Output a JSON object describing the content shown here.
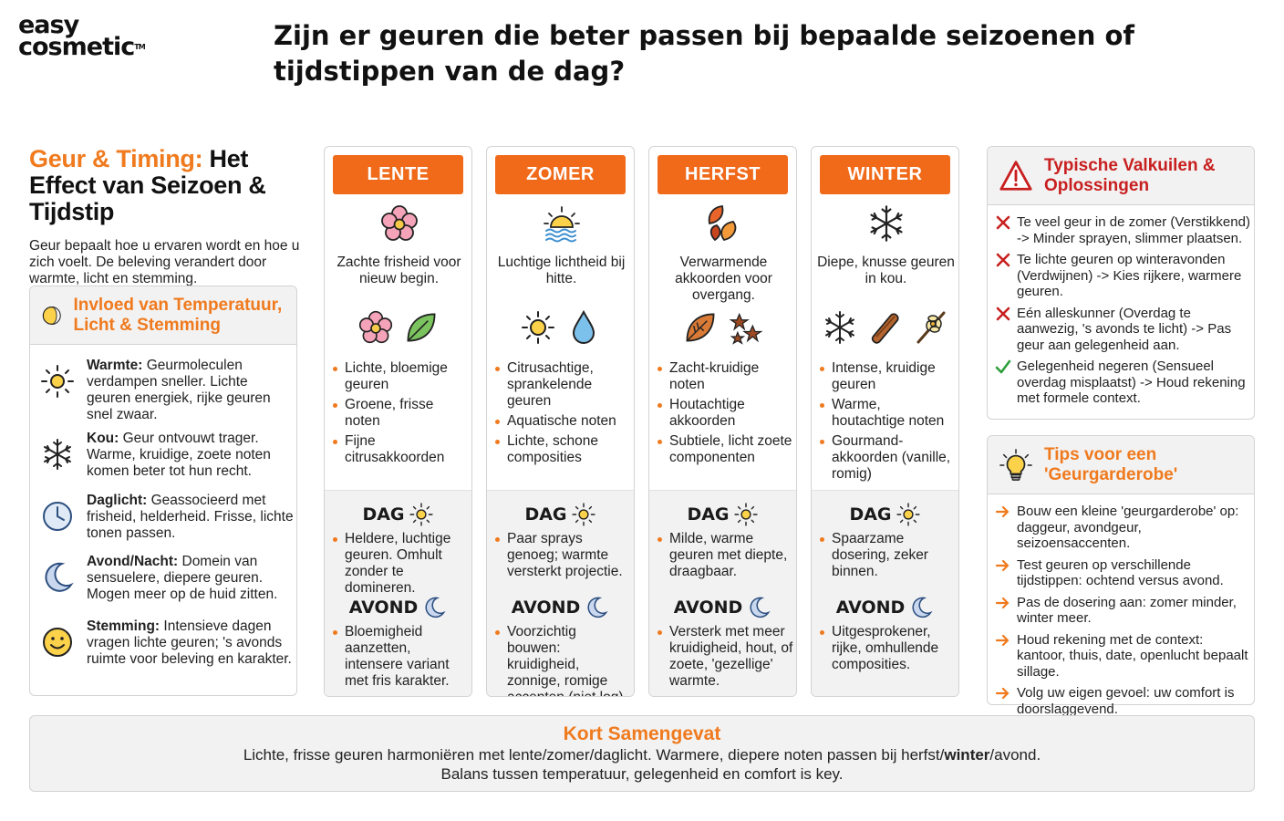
{
  "logo": {
    "line1": "easy",
    "line2": "cosmetic",
    "tm": "TM"
  },
  "title": "Zijn er geuren die beter passen bij bepaalde seizoenen of tijdstippen van de dag?",
  "intro": {
    "heading_accent": "Geur & Timing:",
    "heading_rest": " Het Effect van Seizoen & Tijdstip",
    "text": "Geur bepaalt hoe u ervaren wordt en hoe u zich voelt. De beleving verandert door warmte, licht en stemming."
  },
  "influence": {
    "title": "Invloed van Temperatuur, Licht & Stemming",
    "items": [
      {
        "term": "Warmte:",
        "text": " Geurmoleculen verdampen sneller. Lichte geuren energiek, rijke geuren snel zwaar.",
        "icon": "sun-icon"
      },
      {
        "term": "Kou:",
        "text": " Geur ontvouwt trager. Warme, kruidige, zoete noten komen beter tot hun recht.",
        "icon": "snowflake-icon"
      },
      {
        "term": "Daglicht:",
        "text": " Geassocieerd met frisheid, helderheid. Frisse, lichte tonen passen.",
        "icon": "clock-icon"
      },
      {
        "term": "Avond/Nacht:",
        "text": " Domein van sensuelere, diepere geuren. Mogen meer op de huid zitten.",
        "icon": "moon-icon"
      },
      {
        "term": "Stemming:",
        "text": " Intensieve dagen vragen lichte geuren; 's avonds ruimte voor beleving en karakter.",
        "icon": "smiley-icon"
      }
    ]
  },
  "phase_labels": {
    "day": "DAG",
    "evening": "AVOND"
  },
  "seasons": [
    {
      "label": "LENTE",
      "desc": "Zachte frisheid voor nieuw begin.",
      "notes": [
        "Lichte, bloemige geuren",
        "Groene, frisse noten",
        "Fijne citrusakkoorden"
      ],
      "day": [
        "Heldere, luchtige geuren. Omhult zonder te domineren."
      ],
      "evening": [
        "Bloemigheid aanzetten, intensere variant met fris karakter."
      ]
    },
    {
      "label": "ZOMER",
      "desc": "Luchtige lichtheid bij hitte.",
      "notes": [
        "Citrusachtige, sprankelende geuren",
        "Aquatische noten",
        "Lichte, schone composities"
      ],
      "day": [
        "Paar sprays genoeg; warmte versterkt projectie."
      ],
      "evening": [
        "Voorzichtig bouwen: kruidigheid, zonnige, romige accenten (niet log)."
      ]
    },
    {
      "label": "HERFST",
      "desc": "Verwarmende akkoorden voor overgang.",
      "notes": [
        "Zacht-kruidige noten",
        "Houtachtige akkoorden",
        "Subtiele, licht zoete componenten"
      ],
      "day": [
        "Milde, warme geuren met diepte, draagbaar."
      ],
      "evening": [
        "Versterk met meer kruidigheid, hout, of zoete, 'gezellige' warmte."
      ]
    },
    {
      "label": "WINTER",
      "desc": "Diepe, knusse geuren in kou.",
      "notes": [
        "Intense, kruidige geuren",
        "Warme, houtachtige noten",
        "Gourmand-akkoorden (vanille, romig)"
      ],
      "day": [
        "Spaarzame dosering, zeker binnen."
      ],
      "evening": [
        "Uitgesprokener, rijke, omhullende composities."
      ]
    }
  ],
  "pitfalls": {
    "title": "Typische Valkuilen & Oplossingen",
    "items": [
      {
        "mark": "cross",
        "text": "Te veel geur in de zomer (Verstikkend) -> Minder sprayen, slimmer plaatsen."
      },
      {
        "mark": "cross",
        "text": "Te lichte geuren op winteravonden (Verdwijnen) -> Kies rijkere, warmere geuren."
      },
      {
        "mark": "cross",
        "text": "Eén alleskunner (Overdag te aanwezig, 's avonds te licht) -> Pas geur aan gelegenheid aan."
      },
      {
        "mark": "check",
        "text": "Gelegenheid negeren (Sensueel overdag misplaatst) -> Houd rekening met formele context."
      }
    ]
  },
  "tips": {
    "title": "Tips voor een 'Geurgarderobe'",
    "items": [
      "Bouw een kleine 'geurgarderobe' op: daggeur, avondgeur, seizoensaccenten.",
      "Test geuren op verschillende tijdstippen: ochtend versus avond.",
      "Pas de dosering aan: zomer minder, winter meer.",
      "Houd rekening met de context: kantoor, thuis, date, openlucht bepaalt sillage.",
      "Volg uw eigen gevoel: uw comfort is doorslaggevend."
    ]
  },
  "summary": {
    "title": "Kort Samengevat",
    "line1_a": "Lichte, frisse geuren harmoniëren met lente/zomer/daglicht. Warmere, diepere noten passen bij herfst/",
    "line1_b": "winter",
    "line1_c": "/avond.",
    "line2": "Balans tussen temperatuur, gelegenheid en comfort is key."
  },
  "colors": {
    "accent": "#f07a1e",
    "season_label_bg": "#f06a1a",
    "pitfall_red": "#c81f1f",
    "check_green": "#2e9e3a"
  }
}
